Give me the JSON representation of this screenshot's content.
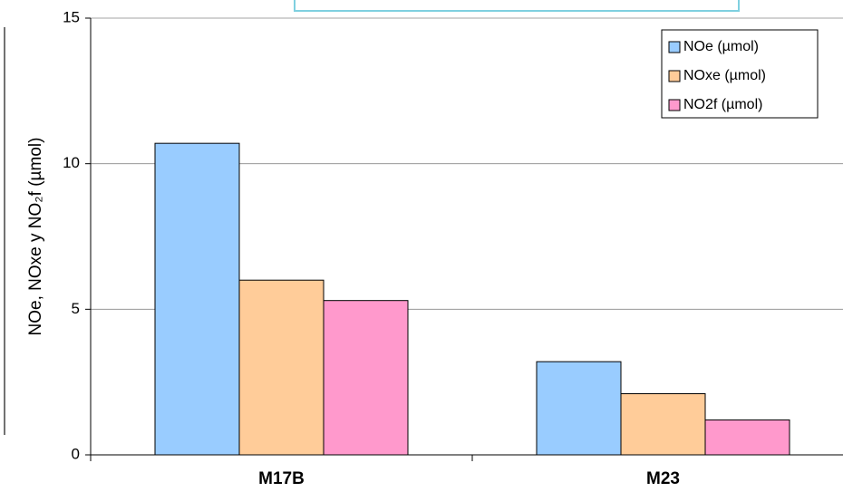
{
  "chart_data": {
    "type": "bar",
    "y_label": "NOe, NOxe y NO₂f (µmol)",
    "categories": [
      "M17B",
      "M23"
    ],
    "series": [
      {
        "name": "NOe (µmol)",
        "color": "#99ccff",
        "values": [
          10.7,
          3.2
        ]
      },
      {
        "name": "NOxe (µmol)",
        "color": "#ffcc99",
        "values": [
          6.0,
          2.1
        ]
      },
      {
        "name": "NO2f (µmol)",
        "color": "#ff99cc",
        "values": [
          5.3,
          1.2
        ]
      }
    ],
    "ylim": [
      0,
      15
    ],
    "yticks": [
      0,
      5,
      10,
      15
    ],
    "grid": true,
    "legend": "upper right"
  }
}
